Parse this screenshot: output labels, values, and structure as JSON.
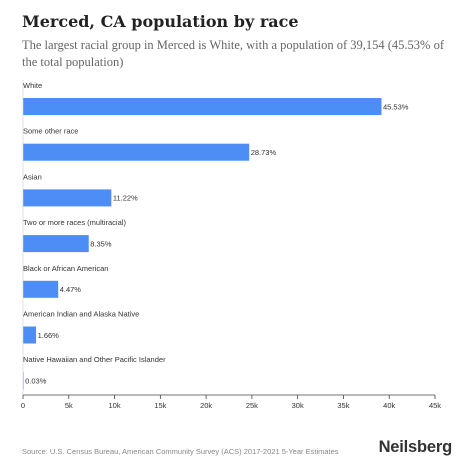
{
  "title": "Merced, CA population by race",
  "subtitle": "The largest racial group in Merced is White, with a population of 39,154 (45.53% of the total population)",
  "source": "Source: U.S. Census Bureau, American Community Survey (ACS) 2017-2021 5-Year Estimates",
  "brand": "Neilsberg",
  "colors": {
    "bar": "#4c8df6",
    "axis": "#444444",
    "label": "#333333"
  },
  "chart_data": {
    "type": "bar",
    "orientation": "horizontal",
    "categories": [
      "White",
      "Some other race",
      "Asian",
      "Two or more races (multiracial)",
      "Black or African American",
      "American Indian and Alaska Native",
      "Native Hawaiian and Other Pacific Islander"
    ],
    "values": [
      39154,
      24707,
      9649,
      7181,
      3844,
      1428,
      26
    ],
    "data_labels": [
      "45.53%",
      "28.73%",
      "11.22%",
      "8.35%",
      "4.47%",
      "1.66%",
      "0.03%"
    ],
    "xlim": [
      0,
      45000
    ],
    "xticks": [
      0,
      5000,
      10000,
      15000,
      20000,
      25000,
      30000,
      35000,
      40000,
      45000
    ],
    "xtick_labels": [
      "0",
      "5k",
      "10k",
      "15k",
      "20k",
      "25k",
      "30k",
      "35k",
      "40k",
      "45k"
    ],
    "title": "Merced, CA population by race",
    "xlabel": "",
    "ylabel": "",
    "grid": false,
    "legend": "none"
  }
}
